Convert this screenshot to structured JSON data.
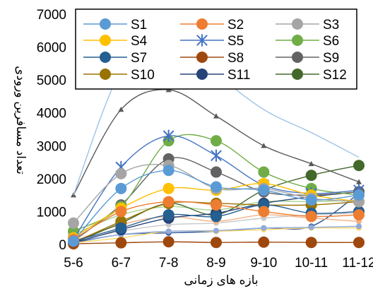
{
  "chart_data": {
    "type": "line",
    "title": "",
    "xlabel": "بازه های زمانی",
    "ylabel": "تعداد مسافرین ورودی",
    "categories": [
      "5-6",
      "6-7",
      "7-8",
      "8-9",
      "9-10",
      "10-11",
      "11-12"
    ],
    "ylim": [
      0,
      7000
    ],
    "yticks": [
      0,
      1000,
      2000,
      3000,
      4000,
      5000,
      6000,
      7000
    ],
    "grid": false,
    "legend_position": "top-inside",
    "series": [
      {
        "name": "S1",
        "color": "#5B9BD5",
        "marker": "circle",
        "values": [
          100,
          1700,
          2250,
          1750,
          1650,
          1350,
          1500
        ]
      },
      {
        "name": "S2",
        "color": "#ED7D31",
        "marker": "circle",
        "values": [
          150,
          1000,
          1300,
          1200,
          1000,
          850,
          900
        ]
      },
      {
        "name": "S3",
        "color": "#A5A5A5",
        "marker": "circle",
        "values": [
          650,
          2150,
          2400,
          1700,
          1700,
          1400,
          1300
        ]
      },
      {
        "name": "S4",
        "color": "#FFC000",
        "marker": "circle",
        "values": [
          200,
          1100,
          1700,
          1650,
          1850,
          1500,
          1300
        ]
      },
      {
        "name": "S5",
        "color": "#4472C4",
        "marker": "star",
        "values": [
          150,
          2350,
          3300,
          2700,
          1800,
          1550,
          1650
        ]
      },
      {
        "name": "S6",
        "color": "#70AD47",
        "marker": "circle",
        "values": [
          400,
          1150,
          3150,
          3150,
          2200,
          1700,
          1500
        ]
      },
      {
        "name": "S7",
        "color": "#255E91",
        "marker": "circle",
        "values": [
          100,
          500,
          900,
          850,
          1200,
          950,
          1000
        ]
      },
      {
        "name": "S8",
        "color": "#9E480E",
        "marker": "circle",
        "values": [
          20,
          50,
          80,
          60,
          70,
          60,
          60
        ]
      },
      {
        "name": "S9",
        "color": "#636363",
        "marker": "circle",
        "values": [
          100,
          1200,
          2600,
          2200,
          1600,
          1500,
          1600
        ]
      },
      {
        "name": "S10",
        "color": "#997300",
        "marker": "circle",
        "values": [
          50,
          700,
          1250,
          1250,
          1200,
          1200,
          1300
        ]
      },
      {
        "name": "S11",
        "color": "#264478",
        "marker": "circle",
        "values": [
          50,
          450,
          800,
          950,
          1250,
          1450,
          1600
        ]
      },
      {
        "name": "S12",
        "color": "#43682B",
        "marker": "circle",
        "values": [
          50,
          650,
          1250,
          900,
          1650,
          2100,
          2400
        ]
      },
      {
        "name": "",
        "color": "#9DC3E6",
        "marker": "none",
        "values": [
          1500,
          5300,
          6550,
          5200,
          4100,
          3400,
          2650
        ]
      },
      {
        "name": "",
        "color": "#595959",
        "marker": "triangle",
        "values": [
          1500,
          4100,
          4700,
          3900,
          3000,
          2450,
          1900
        ]
      },
      {
        "name": "",
        "color": "#A9D18E",
        "marker": "circle",
        "values": [
          300,
          900,
          1150,
          1050,
          1300,
          1300,
          1350
        ]
      },
      {
        "name": "",
        "color": "#8FAADC",
        "marker": "circle",
        "values": [
          80,
          300,
          400,
          420,
          500,
          520,
          550
        ]
      },
      {
        "name": "",
        "color": "#F4B183",
        "marker": "circle",
        "values": [
          100,
          600,
          850,
          700,
          900,
          800,
          700
        ]
      },
      {
        "name": "",
        "color": "#C9C9C9",
        "marker": "circle",
        "values": [
          100,
          400,
          600,
          650,
          800,
          900,
          950
        ]
      },
      {
        "name": "",
        "color": "#FFD966",
        "marker": "circle",
        "values": [
          50,
          200,
          400,
          400,
          450,
          500,
          500
        ]
      },
      {
        "name": "",
        "color": "#2F5597",
        "marker": "circle",
        "values": [
          50,
          300,
          350,
          400,
          500,
          550,
          1550
        ]
      }
    ]
  }
}
